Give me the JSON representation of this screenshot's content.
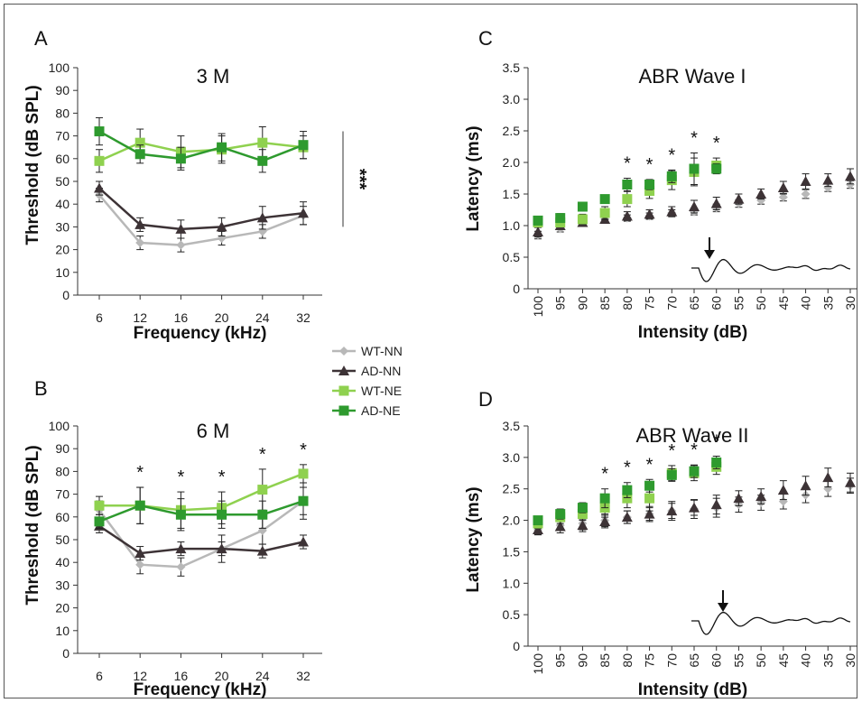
{
  "colors": {
    "WT-NN": "#b8b8b8",
    "AD-NN": "#3d3336",
    "WT-NE": "#8fd14f",
    "AD-NE": "#2e9a2e"
  },
  "legend": {
    "items": [
      {
        "name": "WT-NN",
        "marker": "diamond"
      },
      {
        "name": "AD-NN",
        "marker": "triangle"
      },
      {
        "name": "WT-NE",
        "marker": "square"
      },
      {
        "name": "AD-NE",
        "marker": "square"
      }
    ]
  },
  "chart_data": [
    {
      "panel": "A",
      "type": "line",
      "title": "3 M",
      "xlabel": "Frequency (kHz)",
      "ylabel": "Threshold (dB SPL)",
      "categories": [
        "6",
        "12",
        "16",
        "20",
        "24",
        "32"
      ],
      "ylim": [
        0,
        100
      ],
      "yticks": [
        0,
        10,
        20,
        30,
        40,
        50,
        60,
        70,
        80,
        90,
        100
      ],
      "series": [
        {
          "name": "WT-NN",
          "values": [
            44,
            23,
            22,
            25,
            28,
            35
          ],
          "errors": [
            3,
            3,
            3,
            3,
            3,
            4
          ]
        },
        {
          "name": "AD-NN",
          "values": [
            47,
            31,
            29,
            30,
            34,
            36
          ],
          "errors": [
            3,
            3,
            4,
            4,
            5,
            5
          ]
        },
        {
          "name": "WT-NE",
          "values": [
            59,
            67,
            63,
            64,
            67,
            65
          ],
          "errors": [
            5,
            6,
            7,
            6,
            7,
            5
          ]
        },
        {
          "name": "AD-NE",
          "values": [
            72,
            62,
            60,
            65,
            59,
            66
          ],
          "errors": [
            6,
            4,
            5,
            6,
            5,
            6
          ]
        }
      ],
      "significance": [
        {
          "label": "***"
        }
      ]
    },
    {
      "panel": "B",
      "type": "line",
      "title": "6 M",
      "xlabel": "Frequency (kHz)",
      "ylabel": "Threshold (dB SPL)",
      "categories": [
        "6",
        "12",
        "16",
        "20",
        "24",
        "32"
      ],
      "ylim": [
        0,
        100
      ],
      "yticks": [
        0,
        10,
        20,
        30,
        40,
        50,
        60,
        70,
        80,
        90,
        100
      ],
      "series": [
        {
          "name": "WT-NN",
          "values": [
            63,
            39,
            38,
            46,
            54,
            67
          ],
          "errors": [
            4,
            4,
            4,
            6,
            6,
            6
          ]
        },
        {
          "name": "AD-NN",
          "values": [
            56,
            44,
            46,
            46,
            45,
            49
          ],
          "errors": [
            3,
            3,
            3,
            3,
            3,
            3
          ]
        },
        {
          "name": "WT-NE",
          "values": [
            65,
            65,
            63,
            64,
            72,
            79
          ],
          "errors": [
            4,
            8,
            8,
            7,
            9,
            4
          ]
        },
        {
          "name": "AD-NE",
          "values": [
            58,
            65,
            61,
            61,
            61,
            67
          ],
          "errors": [
            3,
            8,
            7,
            6,
            6,
            8
          ]
        }
      ],
      "stars": [
        {
          "category": "12",
          "label": "*"
        },
        {
          "category": "16",
          "label": "*"
        },
        {
          "category": "20",
          "label": "*"
        },
        {
          "category": "24",
          "label": "*"
        },
        {
          "category": "32",
          "label": "*"
        }
      ]
    },
    {
      "panel": "C",
      "type": "scatter",
      "title": "ABR Wave I",
      "xlabel": "Intensity (dB)",
      "ylabel": "Latency (ms)",
      "categories": [
        "100",
        "95",
        "90",
        "85",
        "80",
        "75",
        "70",
        "65",
        "60",
        "55",
        "50",
        "45",
        "40",
        "35",
        "30"
      ],
      "ylim": [
        0,
        3.5
      ],
      "yticks": [
        "0",
        "0.5",
        "1.0",
        "1.5",
        "2.0",
        "2.5",
        "3.0",
        "3.5"
      ],
      "series": [
        {
          "name": "WT-NN",
          "values": [
            0.85,
            0.95,
            1.05,
            1.1,
            1.12,
            1.15,
            1.2,
            1.22,
            1.28,
            1.35,
            1.4,
            1.45,
            1.5,
            1.6,
            1.65
          ],
          "errors": [
            0.06,
            0.05,
            0.05,
            0.05,
            0.05,
            0.05,
            0.05,
            0.05,
            0.06,
            0.06,
            0.06,
            0.06,
            0.07,
            0.06,
            0.06
          ]
        },
        {
          "name": "AD-NN",
          "values": [
            0.9,
            1.0,
            1.05,
            1.1,
            1.15,
            1.18,
            1.22,
            1.3,
            1.35,
            1.42,
            1.5,
            1.6,
            1.7,
            1.72,
            1.78
          ],
          "errors": [
            0.08,
            0.06,
            0.06,
            0.06,
            0.07,
            0.07,
            0.08,
            0.1,
            0.1,
            0.08,
            0.08,
            0.1,
            0.12,
            0.1,
            0.12
          ]
        },
        {
          "name": "WT-NE",
          "values": [
            1.05,
            1.05,
            1.1,
            1.2,
            1.42,
            1.55,
            1.72,
            1.85,
            1.95,
            null,
            null,
            null,
            null,
            null,
            null
          ],
          "errors": [
            0.08,
            0.07,
            0.08,
            0.1,
            0.12,
            0.12,
            0.15,
            0.22,
            0.12,
            null,
            null,
            null,
            null,
            null,
            null
          ]
        },
        {
          "name": "AD-NE",
          "values": [
            1.08,
            1.12,
            1.3,
            1.42,
            1.65,
            1.65,
            1.78,
            1.9,
            1.9,
            null,
            null,
            null,
            null,
            null,
            null
          ],
          "errors": [
            0.06,
            0.07,
            0.06,
            0.05,
            0.1,
            0.08,
            0.1,
            0.25,
            0.08,
            null,
            null,
            null,
            null,
            null,
            null
          ]
        }
      ],
      "stars": [
        {
          "category": "80",
          "label": "*"
        },
        {
          "category": "75",
          "label": "*"
        },
        {
          "category": "70",
          "label": "*"
        },
        {
          "category": "65",
          "label": "*"
        },
        {
          "category": "60",
          "label": "*"
        }
      ]
    },
    {
      "panel": "D",
      "type": "scatter",
      "title": "ABR Wave II",
      "xlabel": "Intensity (dB)",
      "ylabel": "Latency (ms)",
      "categories": [
        "100",
        "95",
        "90",
        "85",
        "80",
        "75",
        "70",
        "65",
        "60",
        "55",
        "50",
        "45",
        "40",
        "35",
        "30"
      ],
      "ylim": [
        0,
        3.5
      ],
      "yticks": [
        "0",
        "0.5",
        "1.0",
        "1.5",
        "2.0",
        "2.5",
        "3.0",
        "3.5"
      ],
      "series": [
        {
          "name": "WT-NN",
          "values": [
            1.85,
            1.92,
            1.95,
            2.0,
            2.05,
            2.1,
            2.15,
            2.18,
            2.2,
            2.25,
            2.28,
            2.3,
            2.4,
            2.5,
            2.55
          ],
          "errors": [
            0.08,
            0.08,
            0.1,
            0.1,
            0.1,
            0.12,
            0.15,
            0.15,
            0.15,
            0.12,
            0.12,
            0.12,
            0.12,
            0.12,
            0.12
          ]
        },
        {
          "name": "AD-NN",
          "values": [
            1.85,
            1.9,
            1.92,
            1.98,
            2.05,
            2.1,
            2.15,
            2.2,
            2.25,
            2.35,
            2.38,
            2.48,
            2.55,
            2.68,
            2.6
          ],
          "errors": [
            0.08,
            0.1,
            0.1,
            0.1,
            0.1,
            0.1,
            0.12,
            0.12,
            0.15,
            0.12,
            0.12,
            0.15,
            0.15,
            0.15,
            0.15
          ]
        },
        {
          "name": "WT-NE",
          "values": [
            1.95,
            2.05,
            2.1,
            2.2,
            2.35,
            2.35,
            2.75,
            2.75,
            2.85,
            null,
            null,
            null,
            null,
            null,
            null
          ],
          "errors": [
            0.08,
            0.1,
            0.1,
            0.15,
            0.15,
            0.2,
            0.12,
            0.12,
            0.12,
            null,
            null,
            null,
            null,
            null,
            null
          ]
        },
        {
          "name": "AD-NE",
          "values": [
            2.0,
            2.1,
            2.2,
            2.35,
            2.48,
            2.55,
            2.72,
            2.78,
            2.92,
            null,
            null,
            null,
            null,
            null,
            null
          ],
          "errors": [
            0.06,
            0.08,
            0.08,
            0.15,
            0.12,
            0.1,
            0.1,
            0.1,
            0.1,
            null,
            null,
            null,
            null,
            null,
            null
          ]
        }
      ],
      "stars": [
        {
          "category": "85",
          "label": "*"
        },
        {
          "category": "80",
          "label": "*"
        },
        {
          "category": "75",
          "label": "*"
        },
        {
          "category": "70",
          "label": "*"
        },
        {
          "category": "65",
          "label": "*"
        },
        {
          "category": "60",
          "label": "*"
        }
      ]
    }
  ]
}
